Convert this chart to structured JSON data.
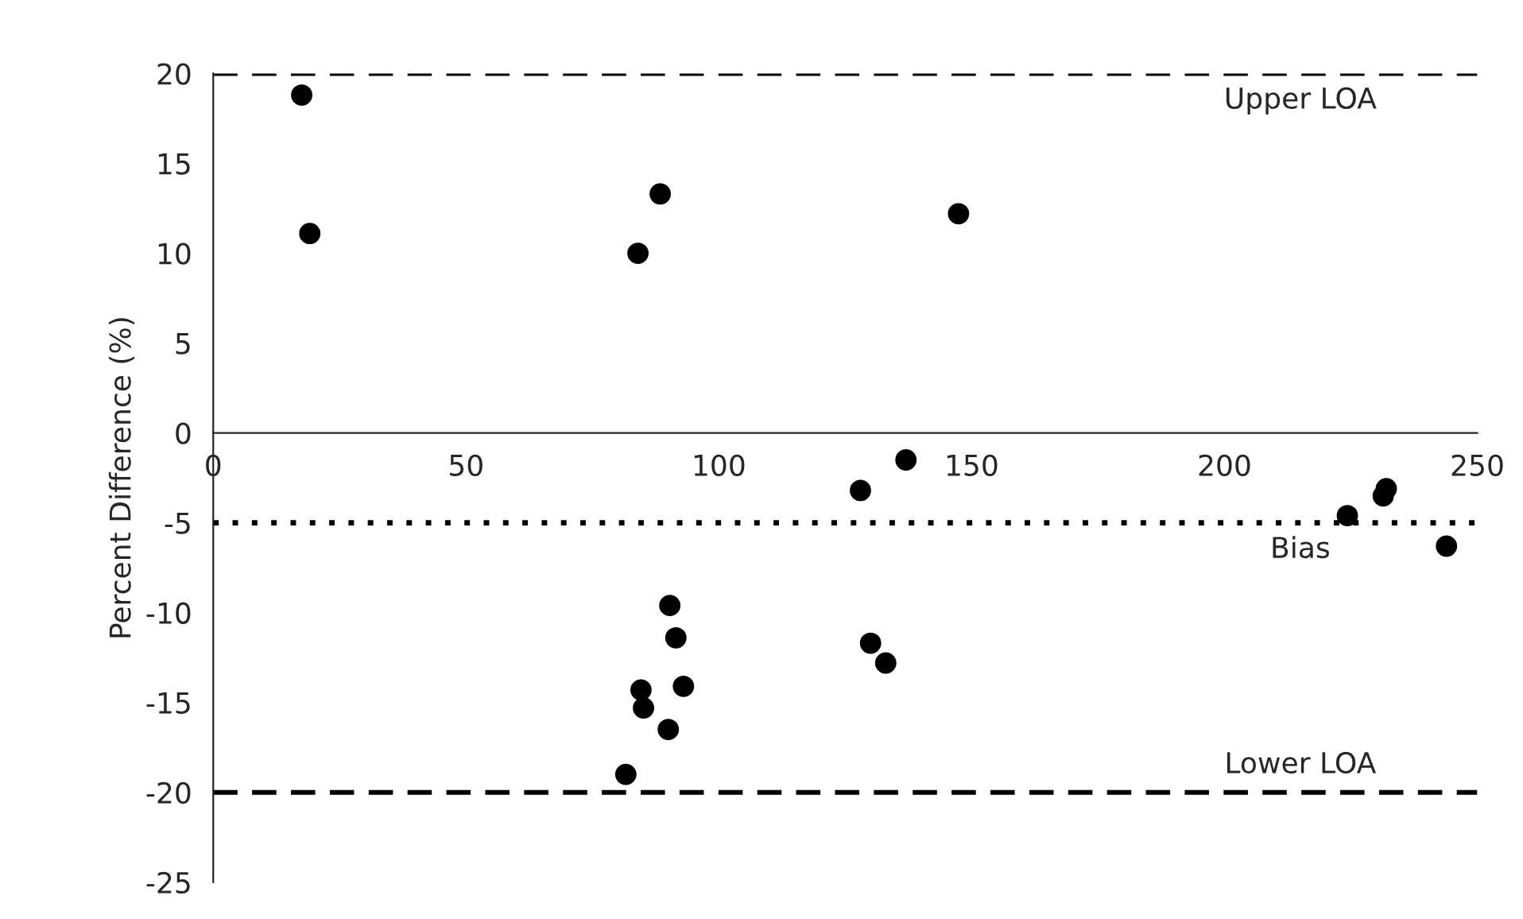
{
  "chart_data": {
    "type": "scatter",
    "ylabel": "Percent Difference (%)",
    "x": [
      17.5,
      19.1,
      84.0,
      88.4,
      147.4,
      128.0,
      137.0,
      90.3,
      91.5,
      93.0,
      84.6,
      85.1,
      90.0,
      81.6,
      130.0,
      133.0,
      224.3,
      231.4,
      232.0,
      243.9
    ],
    "values": [
      18.8,
      11.1,
      10.0,
      13.3,
      12.2,
      -3.2,
      -1.5,
      -9.6,
      -11.4,
      -14.1,
      -14.3,
      -15.3,
      -16.5,
      -19.0,
      -11.7,
      -12.8,
      -4.6,
      -3.5,
      -3.1,
      -6.3
    ],
    "color": "#000000",
    "marker": "circle",
    "xlim": [
      0,
      250
    ],
    "xticks": [
      0,
      50,
      100,
      150,
      200,
      250
    ],
    "ylim": [
      -25,
      20
    ],
    "yticks": [
      -25,
      -20,
      -15,
      -10,
      -5,
      0,
      5,
      10,
      15,
      20
    ],
    "ref_lines": [
      {
        "axis": "y",
        "value": 20,
        "label": "Upper LOA",
        "line_style": "dashed",
        "color": "#000000"
      },
      {
        "axis": "y",
        "value": -5,
        "label": "Bias",
        "line_style": "dotted",
        "color": "#000000"
      },
      {
        "axis": "y",
        "value": -20,
        "label": "Lower LOA",
        "line_style": "dashed",
        "color": "#000000"
      }
    ],
    "grid": false,
    "legend": false
  }
}
